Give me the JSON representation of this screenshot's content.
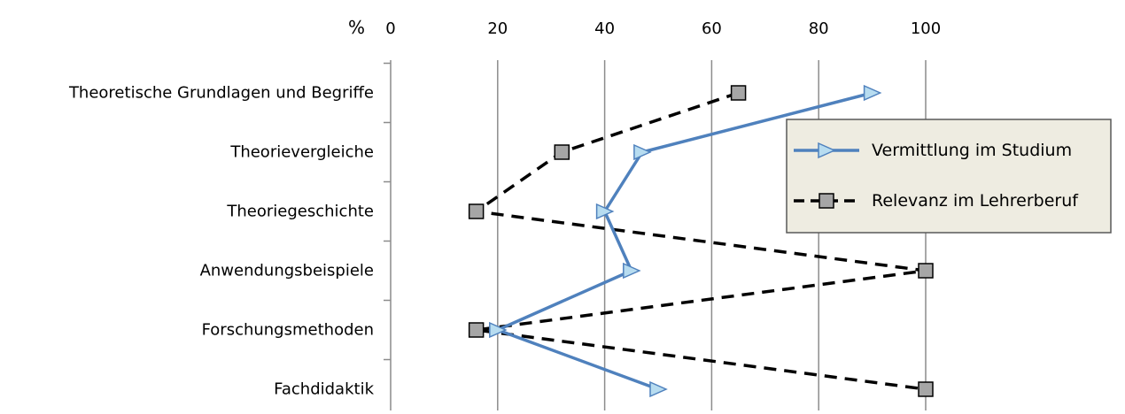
{
  "chart_data": {
    "type": "line",
    "orientation": "horizontal",
    "xunit": "%",
    "xlim": [
      0,
      100
    ],
    "xticks": [
      0,
      20,
      40,
      60,
      80,
      100
    ],
    "grid": true,
    "categories": [
      "Theoretische Grundlagen und Begriffe",
      "Theorievergleiche",
      "Theoriegeschichte",
      "Anwendungsbeispiele",
      "Forschungsmethoden",
      "Fachdidaktik"
    ],
    "series": [
      {
        "name": "Vermittlung im Studium",
        "values": [
          90,
          47,
          40,
          45,
          20,
          50
        ],
        "color": "#4f81bd",
        "marker": "triangle-right",
        "marker_fill": "#b7dcf0",
        "line_style": "solid"
      },
      {
        "name": "Relevanz im Lehrerberuf",
        "values": [
          65,
          32,
          16,
          100,
          16,
          100
        ],
        "color": "#000000",
        "marker": "square",
        "marker_fill": "#a6a6a6",
        "line_style": "dashed"
      }
    ],
    "legend_position": "top-right"
  }
}
